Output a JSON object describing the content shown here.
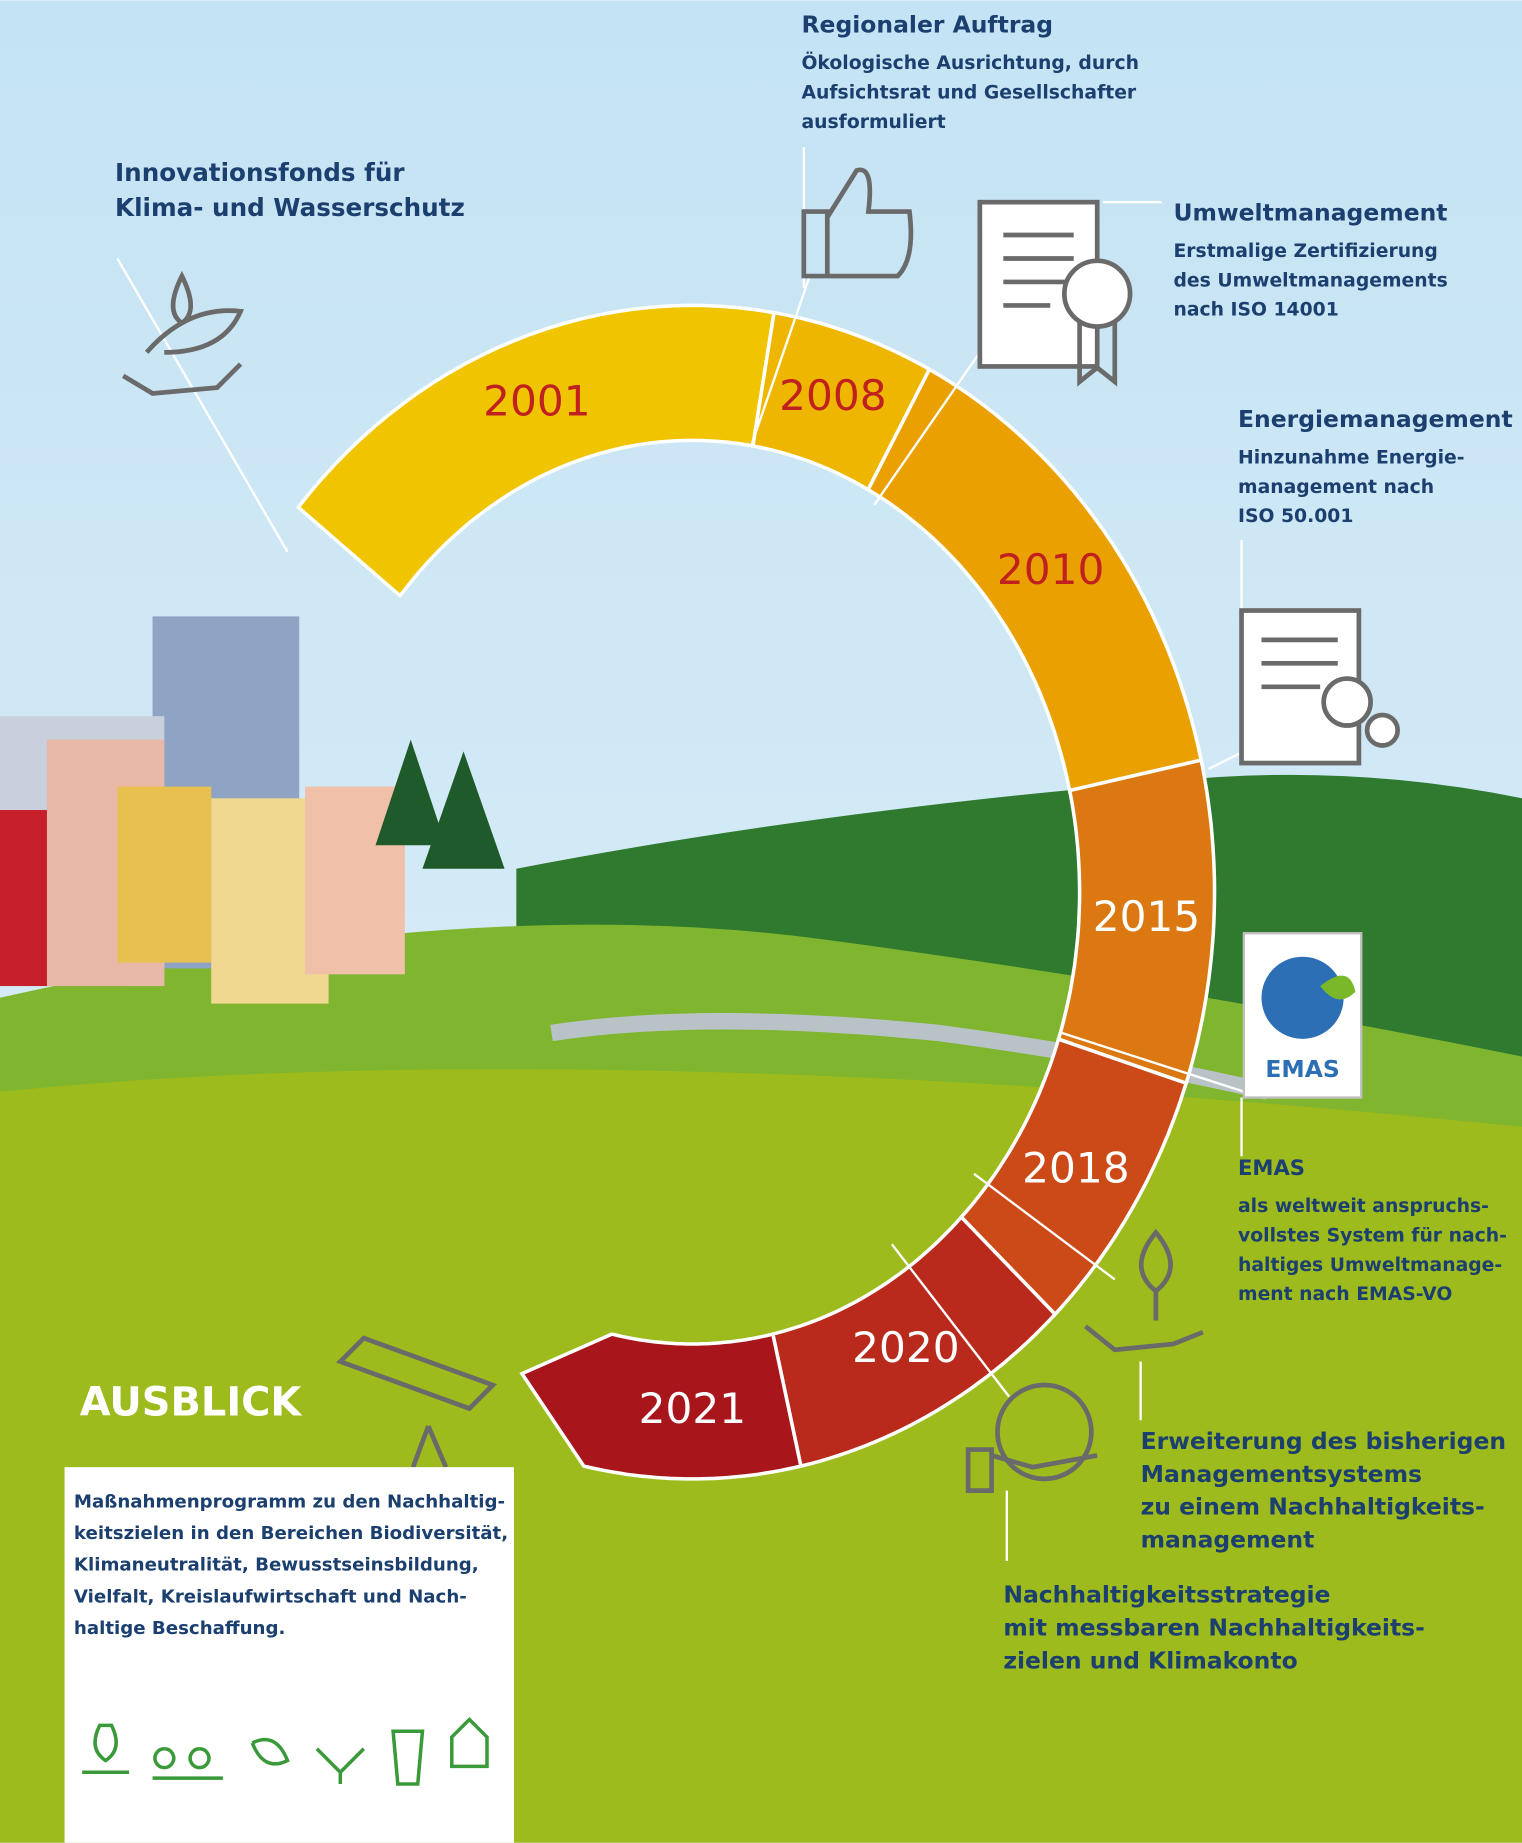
{
  "milestones": [
    {
      "year": "2001",
      "title": [
        "Innovationsfonds für",
        "Klima- und Wasserschutz"
      ],
      "text": []
    },
    {
      "year": "2008",
      "title": [
        "Regionaler Auftrag"
      ],
      "text": [
        "Ökologische Ausrichtung, durch",
        "Aufsichtsrat und Gesellschafter",
        "ausformuliert"
      ]
    },
    {
      "year": "2010",
      "title": [
        "Umweltmanagement"
      ],
      "text": [
        "Erstmalige Zertifizierung",
        "des Umweltmanagements",
        "nach ISO 14001"
      ]
    },
    {
      "year": "2015",
      "title": [
        "Energiemanagement"
      ],
      "text": [
        "Hinzunahme Energie-",
        "management nach",
        "ISO 50.001"
      ]
    },
    {
      "year": "2018",
      "title": [
        "EMAS"
      ],
      "text": [
        "als weltweit anspruchs-",
        "vollstes System für nach-",
        "haltiges Umweltmanage-",
        "ment nach EMAS-VO"
      ]
    },
    {
      "year": "2020",
      "title": [
        "Erweiterung des bisherigen",
        "Managementsystems",
        "zu einem Nachhaltigkeits-",
        "management"
      ],
      "text": []
    },
    {
      "year": "2021",
      "title": [
        "Nachhaltigkeitsstrategie",
        "mit messbaren Nachhaltigkeits-",
        "zielen und Klimakonto"
      ],
      "text": []
    }
  ],
  "emas_logo": "EMAS",
  "ausblick": {
    "title": "AUSBLICK",
    "text": [
      "Maßnahmenprogramm zu den Nachhaltig-",
      "keitszielen in den Bereichen Biodiversität,",
      "Klimaneutralität, Bewusstseinsbildung,",
      "Vielfalt, Kreislaufwirtschaft und Nach-",
      "haltige Beschaffung."
    ]
  }
}
